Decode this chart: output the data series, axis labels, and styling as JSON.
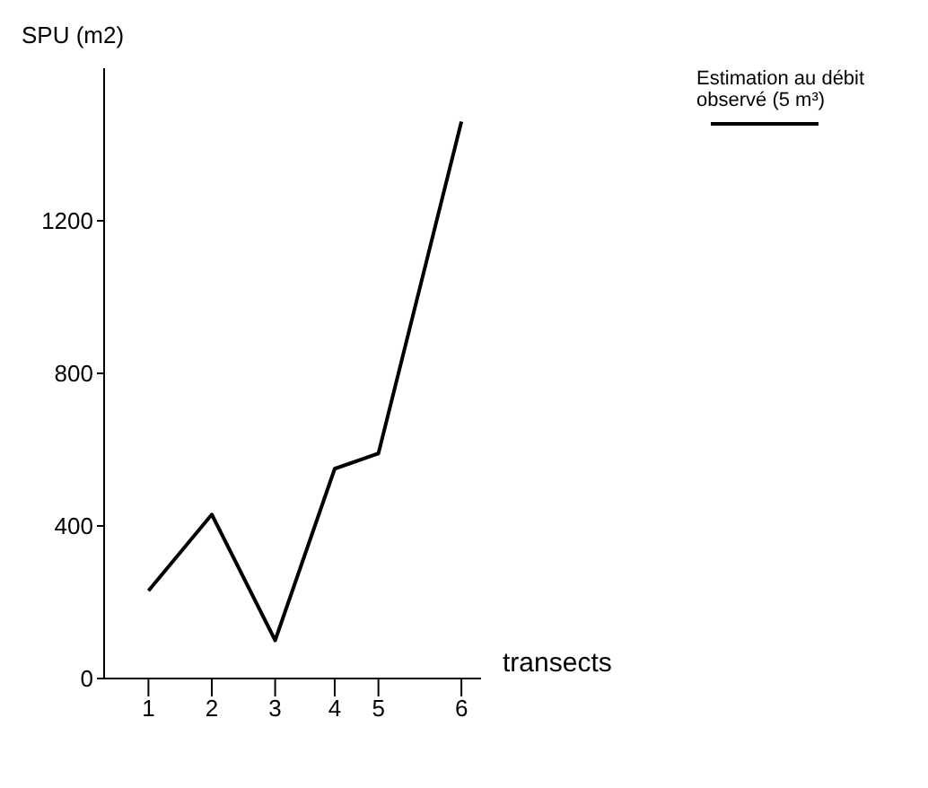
{
  "chart_data": {
    "type": "line",
    "ylabel": "SPU (m2)",
    "xlabel": "transects",
    "x": [
      1,
      2,
      3,
      3.94,
      4.63,
      5.94
    ],
    "series": [
      {
        "name": "Estimation au débit observé (5 m³)",
        "color": "#000000",
        "values": [
          230,
          430,
          100,
          550,
          590,
          1460
        ]
      }
    ],
    "xlim": [
      0.3,
      6.25
    ],
    "xticks": [
      {
        "value": 1,
        "label": "1"
      },
      {
        "value": 2,
        "label": "2"
      },
      {
        "value": 3,
        "label": "3"
      },
      {
        "value": 3.94,
        "label": "4"
      },
      {
        "value": 4.63,
        "label": "5"
      },
      {
        "value": 5.94,
        "label": "6"
      }
    ],
    "ylim": [
      0,
      1600
    ],
    "yticks": [
      0,
      400,
      800,
      1200
    ],
    "grid": false,
    "legend": "top right",
    "marker": "none",
    "line_style": "solid"
  }
}
